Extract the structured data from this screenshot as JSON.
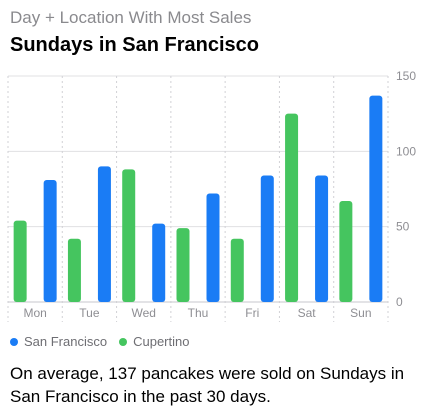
{
  "header": {
    "subtitle": "Day + Location With Most Sales",
    "title": "Sundays in San Francisco"
  },
  "summary": "On average, 137 pancakes were sold on Sundays in San Francisco in the past 30 days.",
  "colors": {
    "san_francisco": "#1a7cf5",
    "cupertino": "#45c55f"
  },
  "chart_data": {
    "type": "bar",
    "categories": [
      "Mon",
      "Tue",
      "Wed",
      "Thu",
      "Fri",
      "Sat",
      "Sun"
    ],
    "series": [
      {
        "name": "Cupertino",
        "values": [
          54,
          42,
          88,
          49,
          42,
          125,
          67
        ]
      },
      {
        "name": "San Francisco",
        "values": [
          81,
          90,
          52,
          72,
          84,
          84,
          137
        ]
      }
    ],
    "ylim": [
      0,
      150
    ],
    "yticks": [
      0,
      50,
      100,
      150
    ],
    "grid": true,
    "legend_position": "bottom-left",
    "title": "Sundays in San Francisco",
    "subtitle": "Day + Location With Most Sales"
  }
}
